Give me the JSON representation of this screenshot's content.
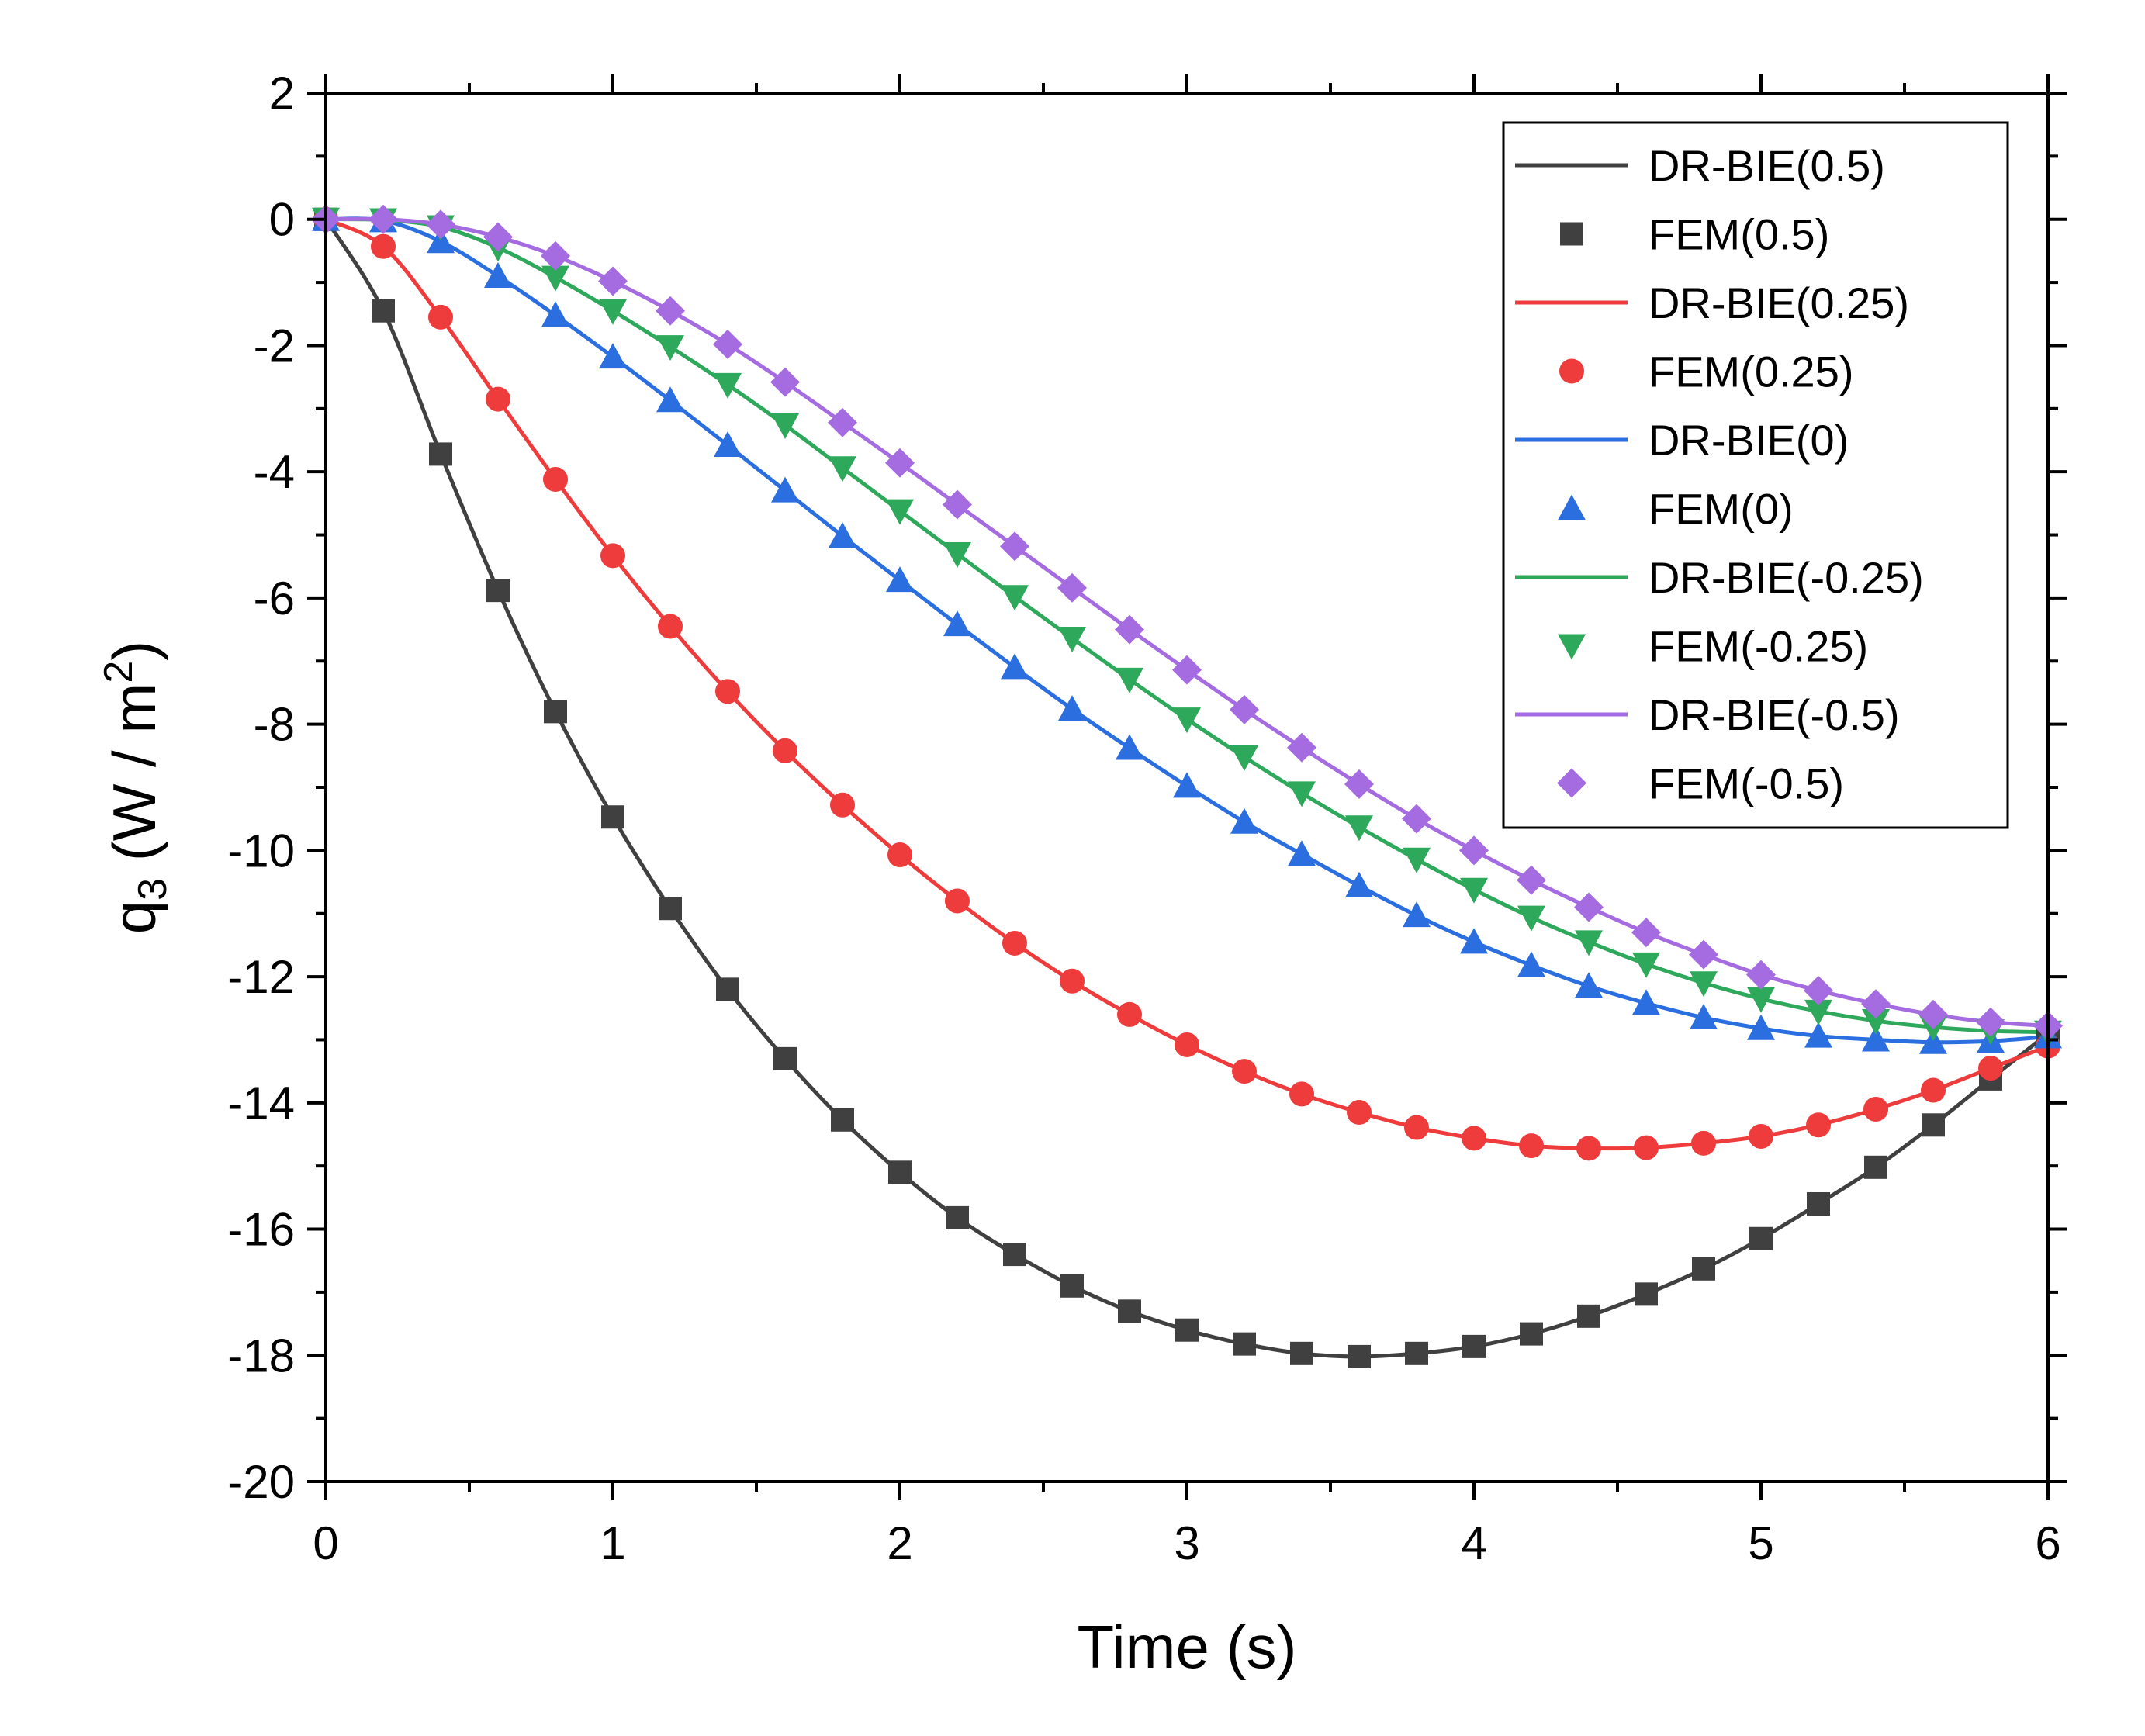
{
  "chart_data": {
    "type": "line",
    "title": "",
    "xlabel": "Time (s)",
    "ylabel": {
      "base": "q",
      "sub": "3",
      "unit_open": " (W / m",
      "sup": "2",
      "unit_close": ")"
    },
    "xlim": [
      0,
      6
    ],
    "ylim": [
      -20,
      2
    ],
    "xticks": [
      0,
      1,
      2,
      3,
      4,
      5,
      6
    ],
    "yticks": [
      2,
      0,
      -2,
      -4,
      -6,
      -8,
      -10,
      -12,
      -14,
      -16,
      -18,
      -20
    ],
    "xtick_labels": [
      "0",
      "1",
      "2",
      "3",
      "4",
      "5",
      "6"
    ],
    "ytick_labels": [
      "2",
      "0",
      "-2",
      "-4",
      "-6",
      "-8",
      "-10",
      "-12",
      "-14",
      "-16",
      "-18",
      "-20"
    ],
    "grid": false,
    "legend_position": "top-right",
    "x": [
      0,
      0.2,
      0.4,
      0.6,
      0.8,
      1.0,
      1.2,
      1.4,
      1.6,
      1.8,
      2.0,
      2.2,
      2.4,
      2.6,
      2.8,
      3.0,
      3.2,
      3.4,
      3.6,
      3.8,
      4.0,
      4.2,
      4.4,
      4.6,
      4.8,
      5.0,
      5.2,
      5.4,
      5.6,
      5.8,
      6.0
    ],
    "series": [
      {
        "parameter": "0.5",
        "line_label": "DR-BIE(0.5)",
        "marker_label": "FEM(0.5)",
        "color": "#404040",
        "marker": "square",
        "values": [
          0,
          -1.45,
          -3.72,
          -5.88,
          -7.8,
          -9.47,
          -10.92,
          -12.2,
          -13.3,
          -14.27,
          -15.1,
          -15.82,
          -16.4,
          -16.9,
          -17.3,
          -17.6,
          -17.82,
          -17.97,
          -18.02,
          -17.97,
          -17.86,
          -17.66,
          -17.38,
          -17.03,
          -16.63,
          -16.15,
          -15.6,
          -15.02,
          -14.35,
          -13.62,
          -12.9
        ]
      },
      {
        "parameter": "0.25",
        "line_label": "DR-BIE(0.25)",
        "marker_label": "FEM(0.25)",
        "color": "#ee3b3b",
        "marker": "circle",
        "values": [
          0,
          -0.43,
          -1.55,
          -2.85,
          -4.12,
          -5.33,
          -6.45,
          -7.48,
          -8.42,
          -9.28,
          -10.07,
          -10.8,
          -11.47,
          -12.07,
          -12.6,
          -13.08,
          -13.5,
          -13.86,
          -14.15,
          -14.39,
          -14.56,
          -14.68,
          -14.72,
          -14.71,
          -14.64,
          -14.53,
          -14.35,
          -14.1,
          -13.8,
          -13.45,
          -13.1
        ]
      },
      {
        "parameter": "0",
        "line_label": "DR-BIE(0)",
        "marker_label": "FEM(0)",
        "color": "#2a6ee0",
        "marker": "triangle-up",
        "values": [
          0,
          -0.02,
          -0.35,
          -0.9,
          -1.52,
          -2.18,
          -2.87,
          -3.58,
          -4.3,
          -5.02,
          -5.72,
          -6.42,
          -7.1,
          -7.76,
          -8.38,
          -8.98,
          -9.55,
          -10.06,
          -10.56,
          -11.03,
          -11.45,
          -11.82,
          -12.15,
          -12.42,
          -12.65,
          -12.82,
          -12.94,
          -13.0,
          -13.04,
          -13.02,
          -12.95
        ]
      },
      {
        "parameter": "-0.25",
        "line_label": "DR-BIE(-0.25)",
        "marker_label": "FEM(-0.25)",
        "color": "#2ea85a",
        "marker": "triangle-down",
        "values": [
          0,
          -0.01,
          -0.12,
          -0.45,
          -0.92,
          -1.45,
          -2.02,
          -2.62,
          -3.26,
          -3.94,
          -4.62,
          -5.3,
          -5.98,
          -6.64,
          -7.29,
          -7.92,
          -8.52,
          -9.09,
          -9.63,
          -10.14,
          -10.62,
          -11.06,
          -11.45,
          -11.8,
          -12.1,
          -12.35,
          -12.55,
          -12.7,
          -12.8,
          -12.86,
          -12.88
        ]
      },
      {
        "parameter": "-0.5",
        "line_label": "DR-BIE(-0.5)",
        "marker_label": "FEM(-0.5)",
        "color": "#a56be0",
        "marker": "diamond",
        "values": [
          0,
          0,
          -0.08,
          -0.28,
          -0.58,
          -0.98,
          -1.45,
          -1.98,
          -2.58,
          -3.22,
          -3.86,
          -4.52,
          -5.18,
          -5.84,
          -6.5,
          -7.14,
          -7.77,
          -8.37,
          -8.95,
          -9.5,
          -10.0,
          -10.47,
          -10.9,
          -11.3,
          -11.65,
          -11.97,
          -12.22,
          -12.43,
          -12.6,
          -12.72,
          -12.78
        ]
      }
    ]
  }
}
